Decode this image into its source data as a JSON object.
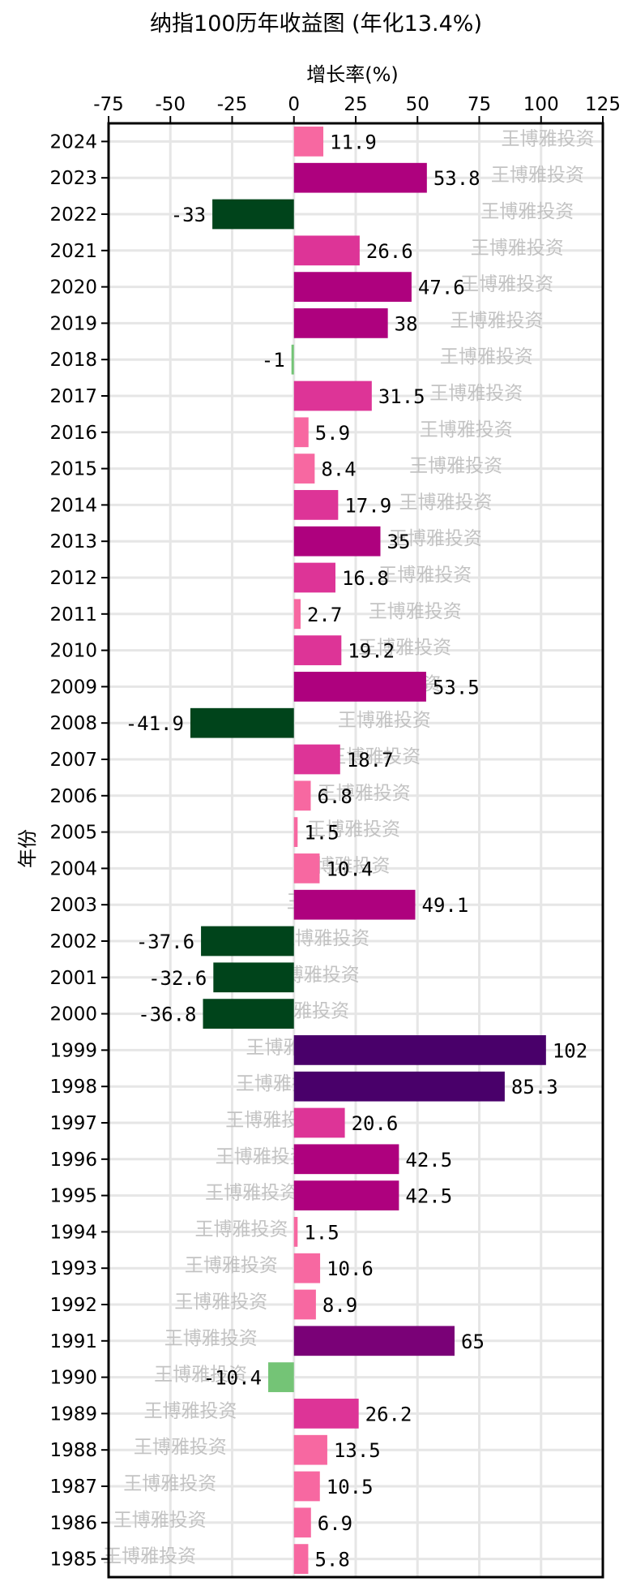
{
  "chart_data": {
    "type": "bar",
    "orientation": "horizontal",
    "title": "纳指100历年收益图 (年化13.4%)",
    "xlabel": "增长率(%)",
    "ylabel": "年份",
    "xlim": [
      -75,
      125
    ],
    "xticks": [
      "-75",
      "-50",
      "-25",
      "0",
      "25",
      "50",
      "75",
      "100",
      "125"
    ],
    "xtick_values": [
      -75,
      -50,
      -25,
      0,
      25,
      50,
      75,
      100,
      125
    ],
    "grid": true,
    "categories": [
      "2024",
      "2023",
      "2022",
      "2021",
      "2020",
      "2019",
      "2018",
      "2017",
      "2016",
      "2015",
      "2014",
      "2013",
      "2012",
      "2011",
      "2010",
      "2009",
      "2008",
      "2007",
      "2006",
      "2005",
      "2004",
      "2003",
      "2002",
      "2001",
      "2000",
      "1999",
      "1998",
      "1997",
      "1996",
      "1995",
      "1994",
      "1993",
      "1992",
      "1991",
      "1990",
      "1989",
      "1988",
      "1987",
      "1986",
      "1985"
    ],
    "values": [
      11.9,
      53.8,
      -33,
      26.6,
      47.6,
      38,
      -1,
      31.5,
      5.9,
      8.4,
      17.9,
      35,
      16.8,
      2.7,
      19.2,
      53.5,
      -41.9,
      18.7,
      6.8,
      1.5,
      10.4,
      49.1,
      -37.6,
      -32.6,
      -36.8,
      102,
      85.3,
      20.6,
      42.5,
      42.5,
      1.5,
      10.6,
      8.9,
      65,
      -10.4,
      26.2,
      13.5,
      10.5,
      6.9,
      5.8
    ],
    "value_labels": [
      "11.9",
      "53.8",
      "-33",
      "26.6",
      "47.6",
      "38",
      "-1",
      "31.5",
      "5.9",
      "8.4",
      "17.9",
      "35",
      "16.8",
      "2.7",
      "19.2",
      "53.5",
      "-41.9",
      "18.7",
      "6.8",
      "1.5",
      "10.4",
      "49.1",
      "-37.6",
      "-32.6",
      "-36.8",
      "102",
      "85.3",
      "20.6",
      "42.5",
      "42.5",
      "1.5",
      "10.6",
      "8.9",
      "65",
      "-10.4",
      "26.2",
      "13.5",
      "10.5",
      "6.9",
      "5.8"
    ],
    "watermark": "王博雅投资",
    "colors": {
      "positive_scale": [
        "#f768a1",
        "#dd3497",
        "#ae017e",
        "#7a0177",
        "#49006a"
      ],
      "negative_scale": [
        "#74c476",
        "#238b45",
        "#006d2c",
        "#00441b"
      ],
      "grid": "#e6e6e6",
      "watermark": "#bdbdbd"
    }
  }
}
